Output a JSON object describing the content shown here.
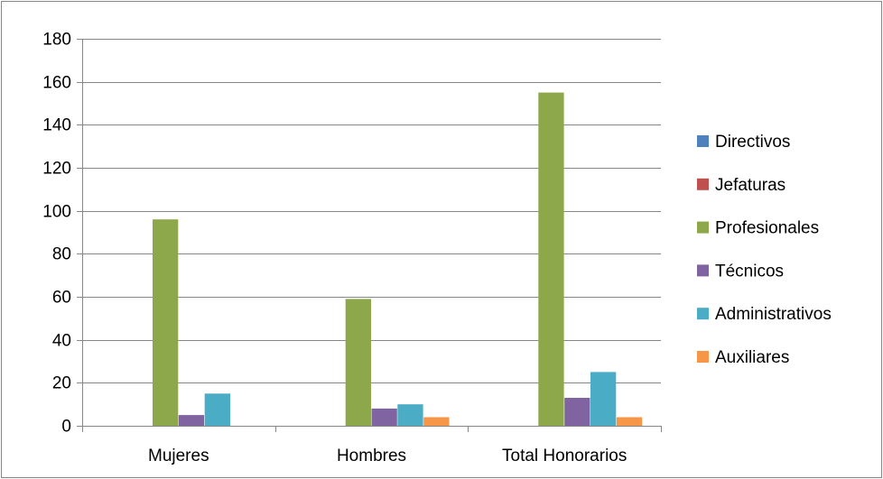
{
  "chart_data": {
    "type": "bar",
    "title": "",
    "xlabel": "",
    "ylabel": "",
    "ylim": [
      0,
      180
    ],
    "yticks": [
      0,
      20,
      40,
      60,
      80,
      100,
      120,
      140,
      160,
      180
    ],
    "grid": true,
    "legend_position": "right",
    "categories": [
      "Mujeres",
      "Hombres",
      "Total Honorarios"
    ],
    "series": [
      {
        "name": "Directivos",
        "color": "#4F81BD",
        "values": [
          0,
          0,
          0
        ]
      },
      {
        "name": "Jefaturas",
        "color": "#C0504D",
        "values": [
          0,
          0,
          0
        ]
      },
      {
        "name": "Profesionales",
        "color": "#8DA84B",
        "values": [
          96,
          59,
          155
        ]
      },
      {
        "name": "Técnicos",
        "color": "#8064A2",
        "values": [
          5,
          8,
          13
        ]
      },
      {
        "name": "Administrativos",
        "color": "#4BACC6",
        "values": [
          15,
          10,
          25
        ]
      },
      {
        "name": "Auxiliares",
        "color": "#F79646",
        "values": [
          0,
          4,
          4
        ]
      }
    ]
  }
}
